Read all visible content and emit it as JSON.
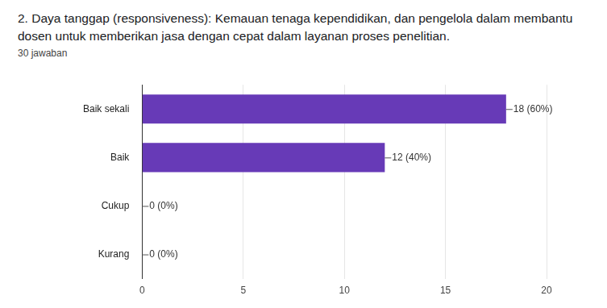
{
  "chart_data": {
    "type": "bar",
    "orientation": "horizontal",
    "title": "2. Daya tanggap (responsiveness):  Kemauan tenaga kependidikan, dan pengelola dalam membantu dosen untuk memberikan jasa dengan cepat dalam layanan proses penelitian.",
    "subtitle": "30 jawaban",
    "categories": [
      "Baik sekali",
      "Baik",
      "Cukup",
      "Kurang"
    ],
    "values": [
      18,
      12,
      0,
      0
    ],
    "value_labels": [
      "18 (60%)",
      "12 (40%)",
      "0 (0%)",
      "0 (0%)"
    ],
    "data_labels": true,
    "color": "#673ab7",
    "xlim": [
      0,
      20
    ],
    "xticks": [
      0,
      5,
      10,
      15,
      20
    ],
    "grid": true
  }
}
